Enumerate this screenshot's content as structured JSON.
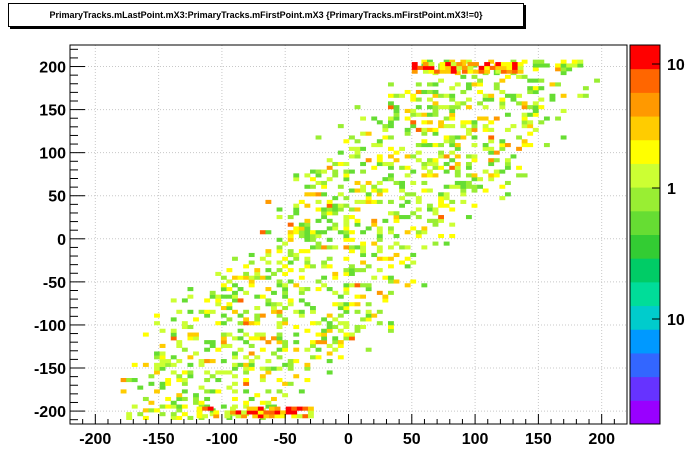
{
  "chart_data": {
    "type": "heatmap",
    "title": "PrimaryTracks.mLastPoint.mX3:PrimaryTracks.mFirstPoint.mX3 {PrimaryTracks.mFirstPoint.mX3!=0}",
    "xlabel": "",
    "ylabel": "",
    "xlim": [
      -220,
      220
    ],
    "ylim": [
      -215,
      225
    ],
    "x_ticks": [
      "-200",
      "-150",
      "-100",
      "-50",
      "0",
      "50",
      "100",
      "150",
      "200"
    ],
    "y_ticks": [
      "-200",
      "-150",
      "-100",
      "-50",
      "0",
      "50",
      "100",
      "150",
      "200"
    ],
    "z_scale": "log",
    "z_ticks": [
      "10",
      "1",
      "10"
    ],
    "grid": true,
    "bin_width": 4.4,
    "bin_height": 4.4,
    "description_of_density": "band of counts from (-120,-200) to (120,200); highest counts near y=-200 for x in [-120,-50] and near y=200 for x in [50,130]",
    "dense_rows": [
      {
        "y": -200,
        "x_from": -120,
        "x_to": -30,
        "level": 9
      },
      {
        "y": 200,
        "x_from": 50,
        "x_to": 135,
        "level": 9
      }
    ],
    "colors": {
      "palette": [
        "#9900ff",
        "#6633ff",
        "#3366ff",
        "#0099ff",
        "#00cccc",
        "#00dd99",
        "#00cc66",
        "#33cc33",
        "#66dd33",
        "#99ee33",
        "#ccff33",
        "#ffff00",
        "#ffcc00",
        "#ff9900",
        "#ff6600",
        "#ff0000"
      ],
      "grid": "#c8c8c8"
    }
  }
}
